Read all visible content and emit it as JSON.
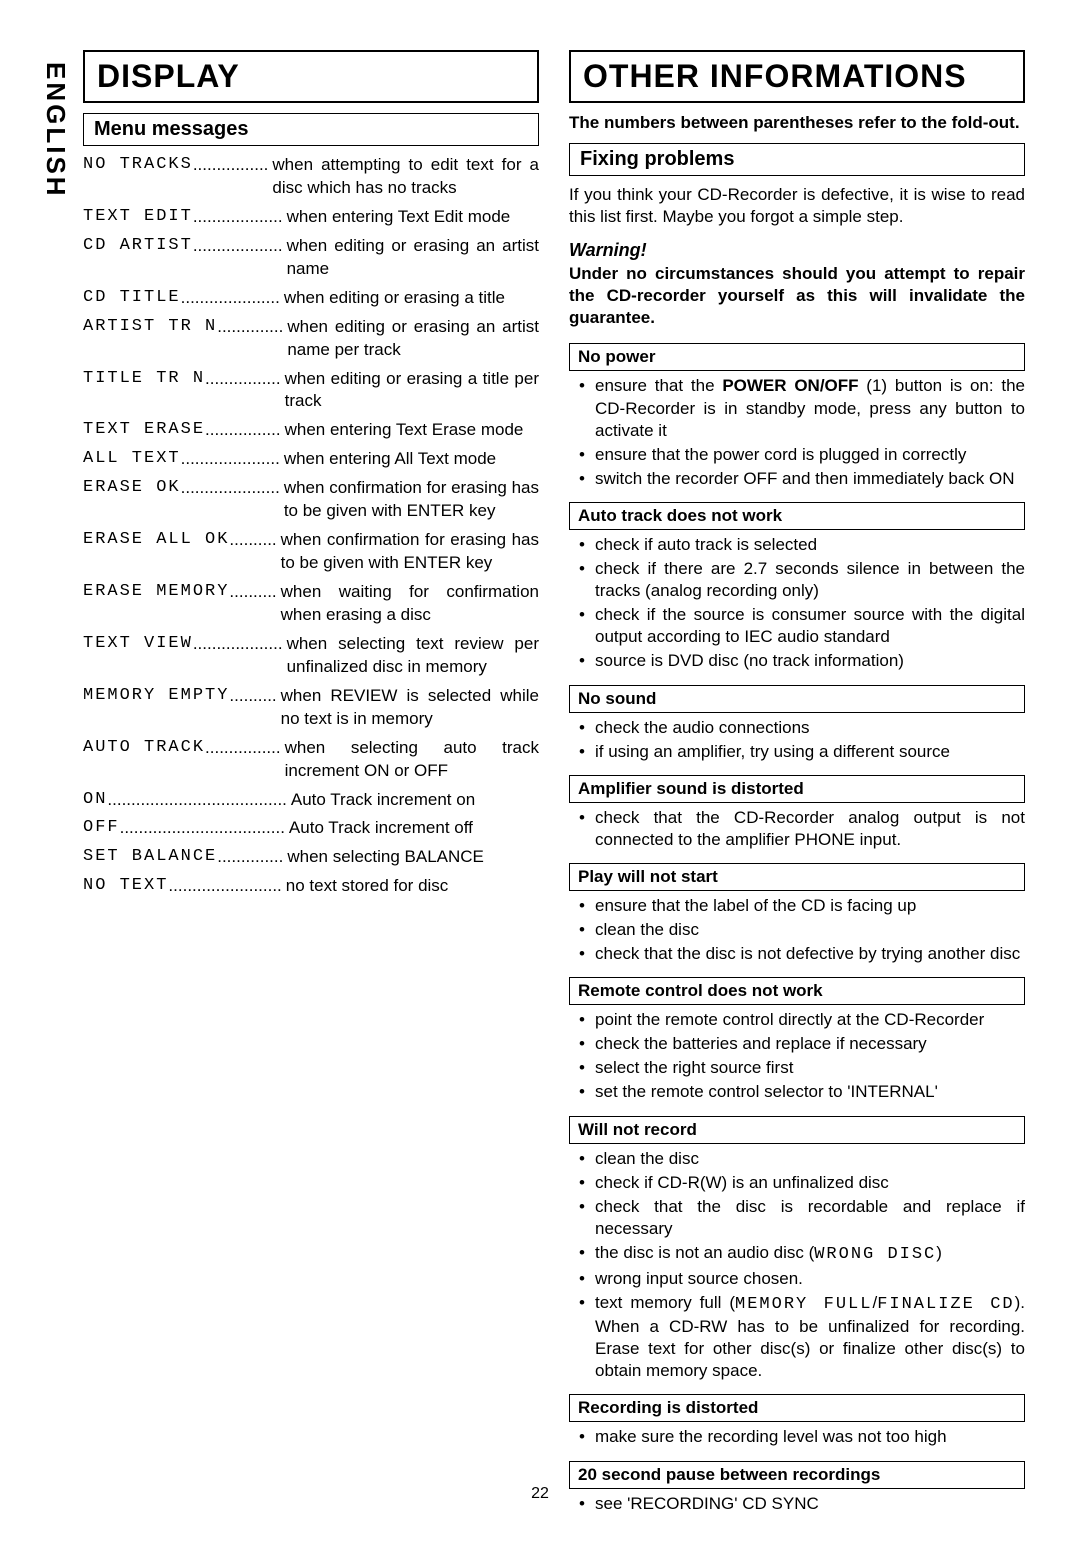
{
  "language_label": "ENGLISH",
  "page_number": "22",
  "left": {
    "section_title": "DISPLAY",
    "sub_title": "Menu messages",
    "items": [
      {
        "term": "NO TRACKS",
        "dots": "................",
        "desc": "when attempting to edit text for a disc which has no tracks"
      },
      {
        "term": "TEXT EDIT",
        "dots": "...................",
        "desc": "when entering Text Edit mode"
      },
      {
        "term": "CD ARTIST",
        "dots": "...................",
        "desc": "when editing or erasing an artist name"
      },
      {
        "term": "CD TITLE",
        "dots": ".....................",
        "desc": "when editing or erasing a title"
      },
      {
        "term": "ARTIST TR N",
        "dots": "..............",
        "desc": "when editing or erasing an artist name per track"
      },
      {
        "term": "TITLE TR N",
        "dots": "................",
        "desc": "when editing or erasing a title per track"
      },
      {
        "term": "TEXT ERASE",
        "dots": "................",
        "desc": "when entering Text Erase mode"
      },
      {
        "term": "ALL TEXT",
        "dots": ".....................",
        "desc": "when entering All Text mode"
      },
      {
        "term": "ERASE OK",
        "dots": ".....................",
        "desc": "when confirmation for erasing has to be given with ENTER key"
      },
      {
        "term": "ERASE ALL OK",
        "dots": "..........",
        "desc": "when confirmation for erasing has to be given with ENTER key"
      },
      {
        "term": "ERASE MEMORY",
        "dots": "..........",
        "desc": "when waiting for confirmation when erasing a disc"
      },
      {
        "term": "TEXT VIEW",
        "dots": "...................",
        "desc": "when selecting text review per unfinalized disc in memory"
      },
      {
        "term": "MEMORY EMPTY",
        "dots": "..........",
        "desc": "when REVIEW is selected while no text is in memory"
      },
      {
        "term": "AUTO TRACK",
        "dots": "................",
        "desc": "when selecting auto track increment ON or OFF"
      },
      {
        "term": "ON",
        "dots": "......................................",
        "desc": "Auto Track increment on"
      },
      {
        "term": "OFF",
        "dots": "...................................",
        "desc": "Auto Track increment off"
      },
      {
        "term": "SET BALANCE",
        "dots": "..............",
        "desc": "when selecting BALANCE"
      },
      {
        "term": "NO TEXT",
        "dots": "........................",
        "desc": "no text stored for disc"
      }
    ]
  },
  "right": {
    "section_title": "OTHER INFORMATIONS",
    "note": "The numbers between parentheses refer to the fold-out.",
    "sub_title": "Fixing problems",
    "intro": "If you think your CD-Recorder is defective, it is wise to read this list first. Maybe you forgot a simple step.",
    "warning_title": "Warning!",
    "warning_body": "Under no circumstances should you attempt to repair the CD-recorder yourself as this will invalidate the guarantee.",
    "problems": [
      {
        "title": "No power",
        "bullets": [
          "ensure that the <b>POWER ON/OFF</b> (1) button is on: the CD-Recorder is in standby mode, press any button to activate it",
          "ensure that the power cord is plugged in correctly",
          "switch the recorder OFF and then immediately back ON"
        ]
      },
      {
        "title": "Auto track does not work",
        "bullets": [
          "check if auto track is selected",
          "check if there are 2.7 seconds silence in between the tracks (analog recording only)",
          "check if the source is consumer source with the digital output according to IEC audio standard",
          "source is DVD disc (no track information)"
        ]
      },
      {
        "title": "No sound",
        "bullets": [
          "check the audio connections",
          "if using an amplifier, try using a different source"
        ]
      },
      {
        "title": "Amplifier sound is distorted",
        "bullets": [
          "check that the CD-Recorder analog output is not connected to the amplifier PHONE input."
        ]
      },
      {
        "title": "Play will not start",
        "bullets": [
          "ensure that the label of the CD is facing up",
          "clean the disc",
          "check that the disc is not defective by trying another disc"
        ]
      },
      {
        "title": "Remote control does not work",
        "bullets": [
          "point the remote control directly at the CD-Recorder",
          "check the batteries and replace if necessary",
          "select the right source first",
          "set the remote control selector to 'INTERNAL'"
        ]
      },
      {
        "title": "Will not record",
        "bullets": [
          "clean the disc",
          "check if CD-R(W) is an unfinalized disc",
          "check that the disc is recordable and replace if necessary",
          "the disc is not an audio disc (<span class='lcd'>WRONG DISC</span>)",
          "wrong input source chosen.",
          "text memory full (<span class='lcd'>MEMORY FULL</span>/<span class='lcd'>FINALIZE CD</span>). When a CD-RW has to be unfinalized for recording. Erase text for other disc(s) or finalize other disc(s) to obtain memory space."
        ]
      },
      {
        "title": "Recording is distorted",
        "bullets": [
          "make sure the recording level was not too high"
        ]
      },
      {
        "title": "20 second pause between recordings",
        "bullets": [
          "see 'RECORDING' CD SYNC"
        ]
      }
    ]
  }
}
